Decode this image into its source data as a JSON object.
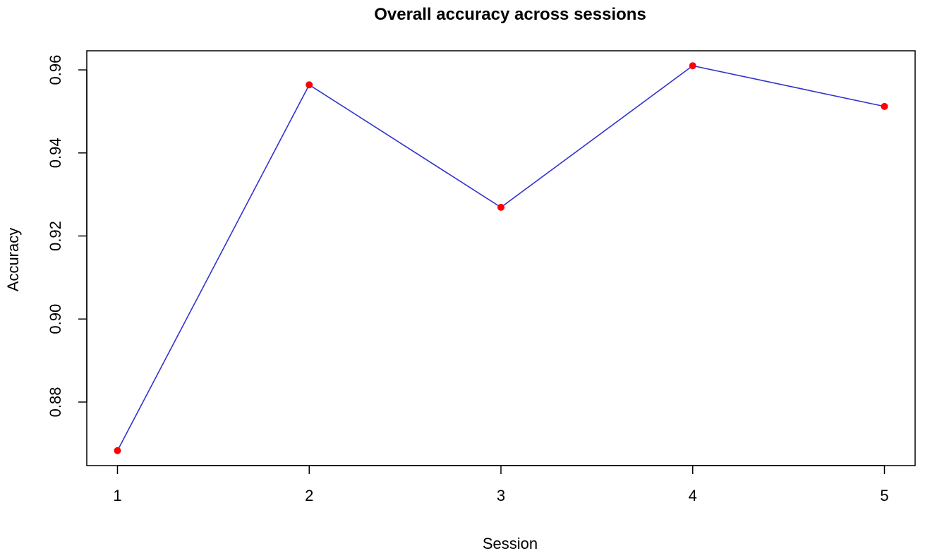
{
  "chart_data": {
    "type": "line",
    "title": "Overall accuracy across sessions",
    "xlabel": "Session",
    "ylabel": "Accuracy",
    "x": [
      1,
      2,
      3,
      4,
      5
    ],
    "series": [
      {
        "values": [
          0.8683,
          0.9564,
          0.9269,
          0.961,
          0.9512
        ],
        "line_color": "#3333cc",
        "point_color": "#ff0000"
      }
    ],
    "xticks": [
      "1",
      "2",
      "3",
      "4",
      "5"
    ],
    "yticks": [
      "0.88",
      "0.90",
      "0.92",
      "0.94",
      "0.96"
    ],
    "xlim": [
      0.84,
      5.16
    ],
    "ylim": [
      0.8647,
      0.9646
    ],
    "grid": false,
    "legend": "none"
  }
}
